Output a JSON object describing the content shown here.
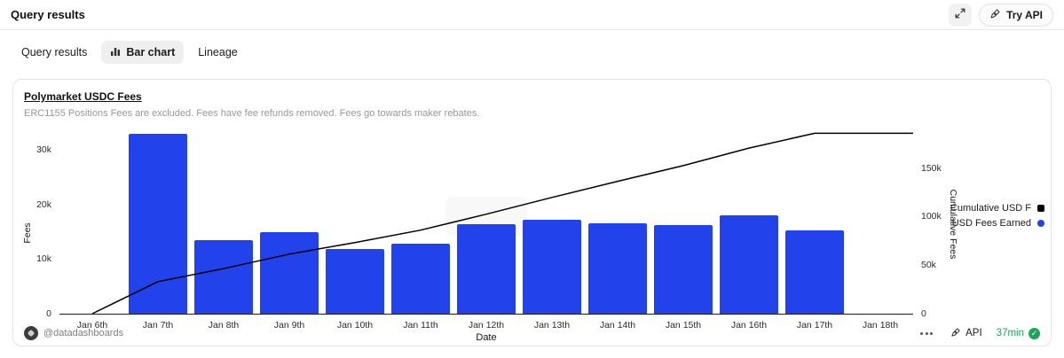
{
  "header": {
    "title": "Query results",
    "try_api_label": "Try API"
  },
  "tabs": [
    {
      "label": "Query results"
    },
    {
      "label": "Bar chart"
    },
    {
      "label": "Lineage"
    }
  ],
  "card": {
    "title": "Polymarket USDC Fees",
    "subtitle": "ERC1155 Positions Fees are excluded. Fees have fee refunds removed. Fees go towards maker rebates."
  },
  "footer": {
    "author": "@datadashboards",
    "api_label": "API",
    "updated": "37min"
  },
  "colors": {
    "bar": "#2243ec",
    "line": "#000000",
    "green": "#1ea35c",
    "tab_active_bg": "#efefef"
  },
  "icons": {
    "expand": "expand-icon",
    "api": "pen-nib-icon",
    "bar_chart": "bar-chart-icon",
    "more": "ellipsis-icon",
    "check": "check-circle-icon"
  },
  "chart_data": {
    "type": "bar",
    "title": "Polymarket USDC Fees",
    "xlabel": "Date",
    "grid": false,
    "legend_position": "right",
    "categories": [
      "Jan 6th",
      "Jan 7th",
      "Jan 8th",
      "Jan 9th",
      "Jan 10th",
      "Jan 11th",
      "Jan 12th",
      "Jan 13th",
      "Jan 14th",
      "Jan 15th",
      "Jan 16th",
      "Jan 17th",
      "Jan 18th"
    ],
    "series": [
      {
        "name": "USD Fees Earned",
        "type": "bar",
        "color": "#2243ec",
        "values": [
          0,
          33000,
          13400,
          14900,
          11900,
          12800,
          16400,
          17200,
          16600,
          16200,
          18000,
          15200,
          0
        ]
      },
      {
        "name": "Cumulative USD F",
        "type": "line",
        "color": "#000000",
        "values": [
          0,
          33000,
          46400,
          61300,
          73200,
          86000,
          102400,
          119600,
          136200,
          152400,
          170400,
          185600,
          185600
        ]
      }
    ],
    "left_axis": {
      "label": "Fees",
      "tick_labels": [
        "0",
        "10k",
        "20k",
        "30k"
      ],
      "tick_values": [
        0,
        10000,
        20000,
        30000
      ],
      "max": 33100
    },
    "right_axis": {
      "label": "Cumulative Fees",
      "tick_labels": [
        "0",
        "50k",
        "100k",
        "150k"
      ],
      "tick_values": [
        0,
        50000,
        100000,
        150000
      ],
      "max": 186000
    },
    "legend": [
      {
        "label": "Cumulative USD F",
        "color": "#000000",
        "marker": "square"
      },
      {
        "label": "USD Fees Earned",
        "color": "#2243ec",
        "marker": "circle"
      }
    ]
  }
}
